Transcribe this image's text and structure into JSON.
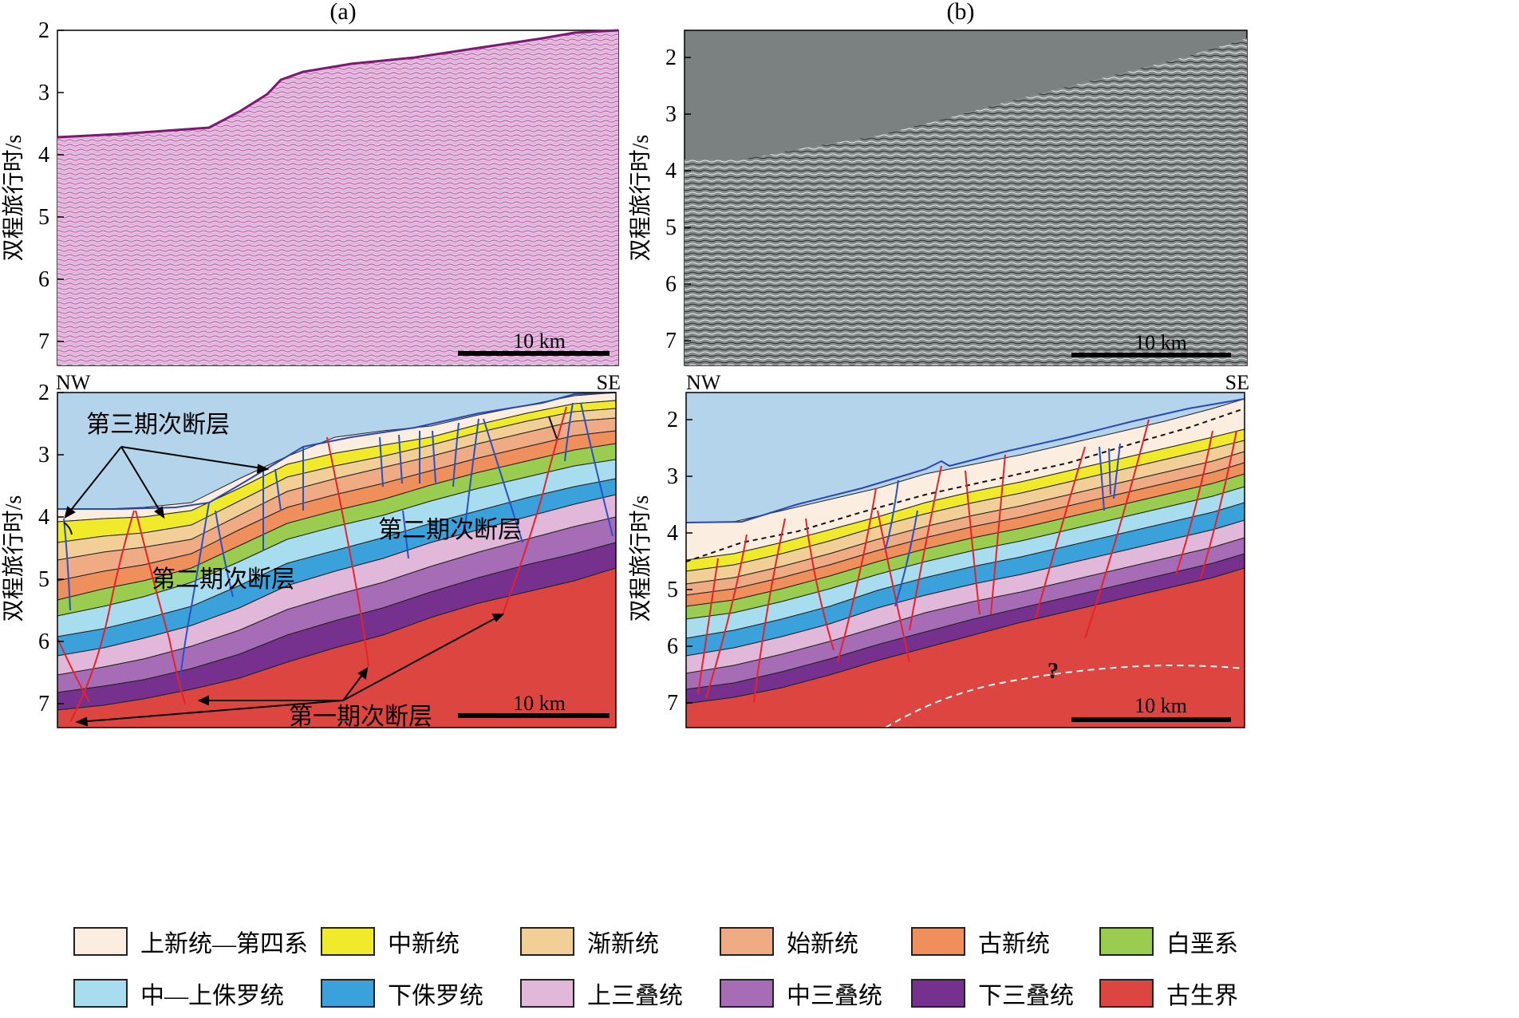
{
  "panels": {
    "a": {
      "label": "(a)"
    },
    "b": {
      "label": "(b)"
    }
  },
  "axis": {
    "ylabel": "双程旅行时/s",
    "ticks_a_top": [
      "2",
      "3",
      "4",
      "5",
      "6",
      "7"
    ],
    "ticks_a_bottom": [
      "2",
      "3",
      "4",
      "5",
      "6",
      "7"
    ],
    "ticks_b_top": [
      "2",
      "3",
      "4",
      "5",
      "6",
      "7"
    ],
    "ticks_b_bottom": [
      "2",
      "3",
      "4",
      "5",
      "6",
      "7"
    ]
  },
  "scale_bar": {
    "label": "10 km"
  },
  "direction": {
    "left": "NW",
    "right": "SE"
  },
  "annotations": {
    "third_phase": "第三期次断层",
    "second_phase_right": "第二期次断层",
    "second_phase_left": "第二期次断层",
    "first_phase": "第一期次断层",
    "unknown": "?"
  },
  "legend": [
    {
      "label": "上新统—第四系",
      "color": "#fbeee0"
    },
    {
      "label": "中新统",
      "color": "#f0ea2a"
    },
    {
      "label": "渐新统",
      "color": "#f3cf98"
    },
    {
      "label": "始新统",
      "color": "#efab84"
    },
    {
      "label": "古新统",
      "color": "#ee8f5c"
    },
    {
      "label": "白垩系",
      "color": "#9acd4f"
    },
    {
      "label": "中—上侏罗统",
      "color": "#a8ddf0"
    },
    {
      "label": "下侏罗统",
      "color": "#3aa1db"
    },
    {
      "label": "上三叠统",
      "color": "#e2b8da"
    },
    {
      "label": "中三叠统",
      "color": "#a66db6"
    },
    {
      "label": "下三叠统",
      "color": "#76318f"
    },
    {
      "label": "古生界",
      "color": "#dc4540"
    }
  ],
  "colors": {
    "water": "#b3d4ea",
    "seafloor": "#2a46b8",
    "fault_first": "#e8202a",
    "fault_other": "#2850c8",
    "seismic_a": "#d9a8d3",
    "seismic_b": "#7b8080"
  }
}
